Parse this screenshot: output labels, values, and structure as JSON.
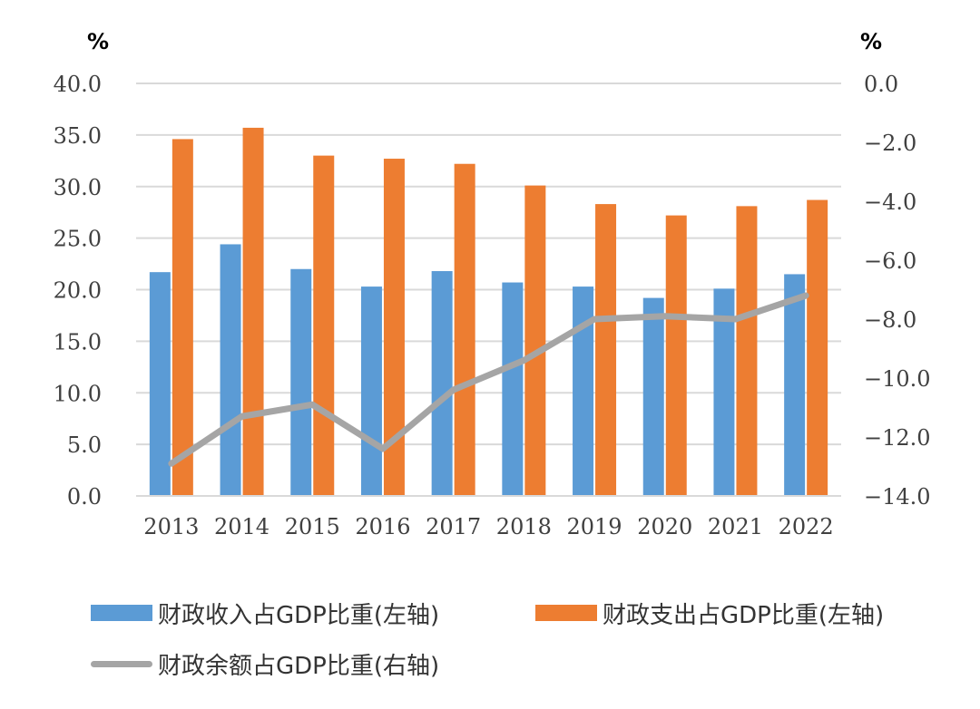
{
  "chart_data": {
    "type": "bar+line",
    "categories": [
      "2013",
      "2014",
      "2015",
      "2016",
      "2017",
      "2018",
      "2019",
      "2020",
      "2021",
      "2022"
    ],
    "series": [
      {
        "name": "财政收入占GDP比重(左轴)",
        "type": "bar",
        "axis": "left",
        "color": "#5b9bd5",
        "values": [
          21.7,
          24.4,
          22.0,
          20.3,
          21.8,
          20.7,
          20.3,
          19.2,
          20.1,
          21.5
        ]
      },
      {
        "name": "财政支出占GDP比重(左轴)",
        "type": "bar",
        "axis": "left",
        "color": "#ed7d31",
        "values": [
          34.6,
          35.7,
          33.0,
          32.7,
          32.2,
          30.1,
          28.3,
          27.2,
          28.1,
          28.7
        ]
      },
      {
        "name": "财政余额占GDP比重(右轴)",
        "type": "line",
        "axis": "right",
        "color": "#a5a5a5",
        "values": [
          -12.9,
          -11.3,
          -10.9,
          -12.4,
          -10.4,
          -9.4,
          -8.0,
          -7.9,
          -8.0,
          -7.2
        ]
      }
    ],
    "left_axis": {
      "unit": "%",
      "ylim": [
        0,
        40
      ],
      "step": 5,
      "ticks": [
        "0.0",
        "5.0",
        "10.0",
        "15.0",
        "20.0",
        "25.0",
        "30.0",
        "35.0",
        "40.0"
      ]
    },
    "right_axis": {
      "unit": "%",
      "ylim": [
        -14,
        0
      ],
      "step": 2,
      "ticks": [
        "−14.0",
        "−12.0",
        "−10.0",
        "−8.0",
        "−6.0",
        "−4.0",
        "−2.0",
        "0.0"
      ]
    },
    "grid": true,
    "legend_position": "bottom"
  }
}
